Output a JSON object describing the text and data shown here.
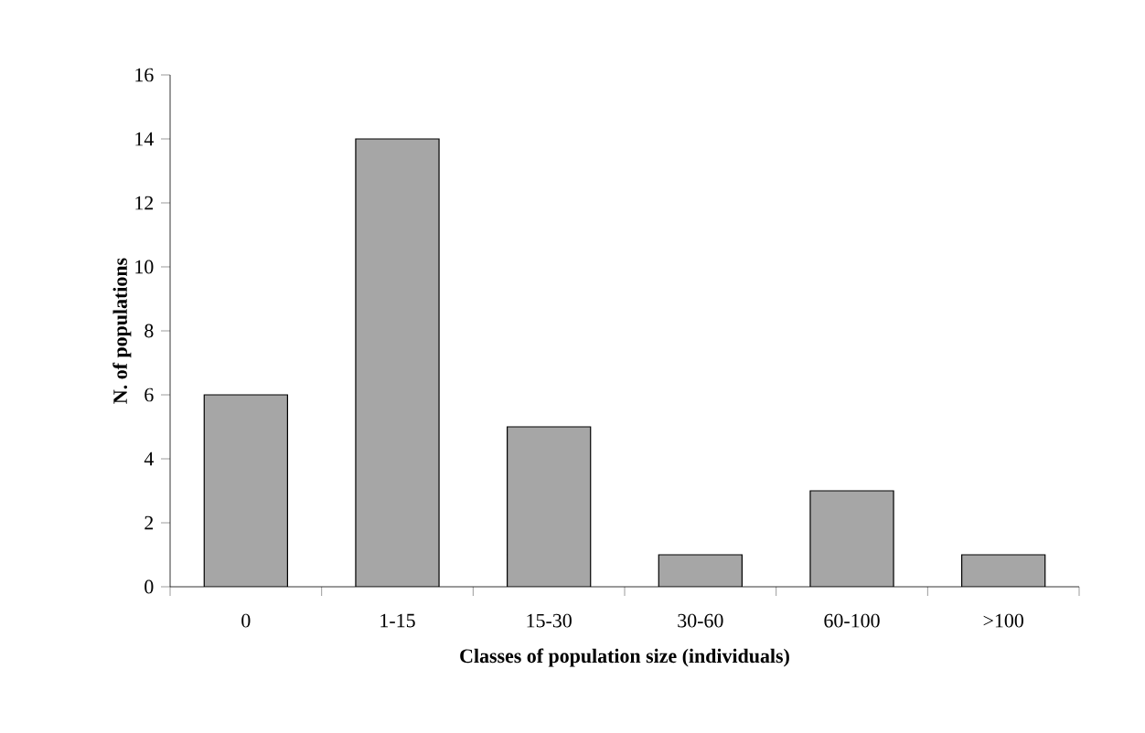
{
  "chart_data": {
    "type": "bar",
    "xlabel": "Classes of population size (individuals)",
    "ylabel": "N. of populations",
    "categories": [
      "0",
      "1-15",
      "15-30",
      "30-60",
      "60-100",
      ">100"
    ],
    "values": [
      6,
      14,
      5,
      1,
      3,
      1
    ],
    "color": "#a6a6a6",
    "ylim": [
      0,
      16
    ],
    "yticks": [
      0,
      2,
      4,
      6,
      8,
      10,
      12,
      14,
      16
    ]
  }
}
